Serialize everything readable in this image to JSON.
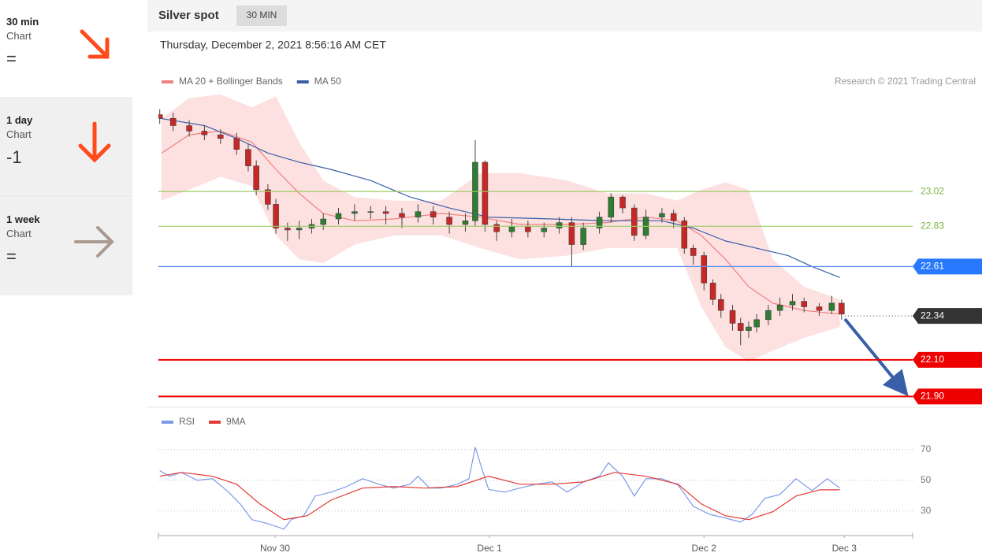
{
  "sidebar": {
    "items": [
      {
        "title": "30 min",
        "subtitle": "Chart",
        "value": "="
      },
      {
        "title": "1 day",
        "subtitle": "Chart",
        "value": "-1"
      },
      {
        "title": "1 week",
        "subtitle": "Chart",
        "value": "="
      }
    ]
  },
  "header": {
    "title": "Silver spot",
    "interval": "30 MIN",
    "timestamp": "Thursday, December 2, 2021 8:56:16 AM CET"
  },
  "chart_data": [
    {
      "type": "candlestick",
      "credit": "Research © 2021 Trading Central",
      "xlim": [
        -13.05,
        71.35
      ],
      "ylim": [
        21.85,
        23.55
      ],
      "candles": {
        "up_color": "#2e7d32",
        "down_color": "#c62828",
        "x": [
          -12.9,
          -11.4,
          -9.6,
          -7.9,
          -6.1,
          -4.3,
          -3.0,
          -2.1,
          -0.8,
          0.1,
          1.4,
          2.7,
          4.1,
          5.4,
          7.1,
          8.9,
          10.7,
          12.4,
          14.2,
          16.0,
          17.7,
          19.5,
          21.3,
          22.4,
          23.5,
          24.8,
          26.5,
          28.3,
          30.1,
          31.8,
          33.2,
          34.5,
          36.3,
          37.6,
          38.9,
          40.2,
          41.5,
          43.3,
          44.6,
          45.8,
          46.8,
          48.0,
          49.0,
          49.9,
          51.2,
          52.1,
          53.0,
          53.9,
          55.2,
          56.5,
          57.9,
          59.2,
          60.9,
          62.3,
          63.4
        ],
        "open": [
          23.44,
          23.42,
          23.38,
          23.35,
          23.33,
          23.31,
          23.25,
          23.16,
          23.03,
          22.95,
          22.82,
          22.81,
          22.82,
          22.84,
          22.87,
          22.9,
          22.91,
          22.91,
          22.9,
          22.88,
          22.91,
          22.88,
          22.84,
          22.86,
          23.18,
          22.84,
          22.8,
          22.83,
          22.8,
          22.82,
          22.85,
          22.73,
          22.82,
          22.88,
          22.99,
          22.93,
          22.78,
          22.88,
          22.9,
          22.86,
          22.71,
          22.67,
          22.52,
          22.43,
          22.37,
          22.3,
          22.26,
          22.28,
          22.32,
          22.37,
          22.4,
          22.42,
          22.39,
          22.37,
          22.41
        ],
        "high": [
          23.47,
          23.45,
          23.41,
          23.38,
          23.36,
          23.34,
          23.28,
          23.19,
          23.06,
          22.98,
          22.85,
          22.86,
          22.87,
          22.9,
          22.93,
          22.95,
          22.94,
          22.94,
          22.93,
          22.95,
          22.94,
          22.91,
          22.9,
          23.3,
          23.19,
          22.86,
          22.87,
          22.86,
          22.85,
          22.88,
          22.88,
          22.85,
          22.91,
          23.01,
          23.0,
          22.95,
          22.92,
          22.93,
          22.92,
          22.88,
          22.73,
          22.69,
          22.54,
          22.46,
          22.4,
          22.33,
          22.31,
          22.35,
          22.4,
          22.44,
          22.46,
          22.44,
          22.41,
          22.45,
          22.43
        ],
        "low": [
          23.39,
          23.35,
          23.32,
          23.3,
          23.28,
          23.22,
          23.13,
          23.0,
          22.92,
          22.79,
          22.75,
          22.76,
          22.79,
          22.81,
          22.84,
          22.86,
          22.87,
          22.84,
          22.82,
          22.85,
          22.84,
          22.79,
          22.8,
          22.83,
          22.8,
          22.75,
          22.77,
          22.77,
          22.77,
          22.79,
          22.61,
          22.7,
          22.79,
          22.85,
          22.9,
          22.75,
          22.76,
          22.85,
          22.82,
          22.68,
          22.62,
          22.48,
          22.4,
          22.33,
          22.26,
          22.18,
          22.22,
          22.25,
          22.29,
          22.34,
          22.37,
          22.36,
          22.34,
          22.35,
          22.32
        ],
        "close": [
          23.42,
          23.38,
          23.35,
          23.33,
          23.31,
          23.25,
          23.16,
          23.03,
          22.95,
          22.82,
          22.81,
          22.82,
          22.84,
          22.87,
          22.9,
          22.91,
          22.91,
          22.9,
          22.88,
          22.91,
          22.88,
          22.84,
          22.86,
          23.18,
          22.84,
          22.8,
          22.83,
          22.8,
          22.82,
          22.85,
          22.73,
          22.82,
          22.88,
          22.99,
          22.93,
          22.78,
          22.88,
          22.9,
          22.86,
          22.71,
          22.67,
          22.52,
          22.43,
          22.37,
          22.3,
          22.26,
          22.28,
          22.32,
          22.37,
          22.4,
          22.42,
          22.39,
          22.37,
          22.41,
          22.35
        ]
      },
      "series": [
        {
          "name": "MA 20 + Bollinger Bands",
          "color": "#f08080",
          "band_color": "#fde0e0",
          "x": [
            -12.7,
            -9.6,
            -6.1,
            -2.6,
            0.1,
            2.7,
            5.4,
            8.9,
            13.3,
            18.6,
            23.0,
            27.4,
            32.7,
            37.1,
            41.5,
            45.0,
            47.7,
            50.4,
            53.0,
            55.7,
            59.2,
            63.2
          ],
          "values": [
            23.23,
            23.33,
            23.35,
            23.29,
            23.14,
            23.01,
            22.9,
            22.86,
            22.87,
            22.9,
            22.88,
            22.84,
            22.84,
            22.85,
            22.88,
            22.86,
            22.78,
            22.65,
            22.5,
            22.41,
            22.37,
            22.35
          ],
          "upper": [
            23.42,
            23.53,
            23.55,
            23.48,
            23.54,
            23.29,
            23.08,
            22.99,
            22.97,
            22.97,
            23.12,
            23.12,
            23.08,
            23.01,
            23.01,
            22.97,
            23.03,
            23.07,
            23.03,
            22.65,
            22.5,
            22.43
          ],
          "lower": [
            22.97,
            23.03,
            23.1,
            23.05,
            22.78,
            22.65,
            22.63,
            22.73,
            22.78,
            22.78,
            22.71,
            22.65,
            22.67,
            22.71,
            22.71,
            22.71,
            22.39,
            22.17,
            22.09,
            22.15,
            22.22,
            22.28
          ]
        },
        {
          "name": "MA 50",
          "color": "#3a5fa8",
          "x": [
            -12.9,
            -7.9,
            -4.3,
            -0.8,
            2.7,
            6.3,
            10.7,
            15.1,
            19.5,
            23.9,
            31.0,
            37.1,
            43.3,
            46.8,
            50.4,
            53.9,
            57.4,
            60.1,
            63.2
          ],
          "values": [
            23.42,
            23.38,
            23.31,
            23.23,
            23.18,
            23.14,
            23.08,
            22.99,
            22.93,
            22.88,
            22.87,
            22.86,
            22.86,
            22.82,
            22.75,
            22.71,
            22.67,
            22.61,
            22.55
          ]
        }
      ],
      "levels": [
        {
          "value": 23.02,
          "color": "#9ccc65",
          "text_color": "#7cb342",
          "style": "text"
        },
        {
          "value": 22.83,
          "color": "#9ccc65",
          "text_color": "#7cb342",
          "style": "text"
        },
        {
          "value": 22.61,
          "color": "#5b8def",
          "text_color": "#2979ff",
          "style": "tag"
        },
        {
          "value": 22.34,
          "color": "#333333",
          "text_color": "#333333",
          "style": "dotted-tag"
        },
        {
          "value": 22.1,
          "label": "22.10",
          "color": "#ee0000",
          "text_color": "#ee0000",
          "style": "tag"
        },
        {
          "value": 21.9,
          "label": "21.90",
          "color": "#ee0000",
          "text_color": "#ee0000",
          "style": "tag"
        }
      ]
    },
    {
      "type": "line",
      "xlim": [
        -13.05,
        71.35
      ],
      "ylim": [
        14,
        96
      ],
      "yticks": [
        70,
        50,
        30
      ],
      "xticks": [
        {
          "value": 0,
          "label": "Nov 30"
        },
        {
          "value": 24,
          "label": "Dec 1"
        },
        {
          "value": 48,
          "label": "Dec 2"
        },
        {
          "value": 63.7,
          "label": "Dec 3"
        }
      ],
      "series": [
        {
          "name": "RSI",
          "color": "#7b9ae8",
          "x": [
            -12.9,
            -11.8,
            -10.5,
            -8.7,
            -7.0,
            -5.2,
            -3.9,
            -2.6,
            -0.8,
            1.0,
            1.8,
            3.2,
            4.5,
            6.3,
            8.0,
            9.8,
            11.6,
            13.3,
            15.1,
            16.0,
            17.3,
            18.6,
            20.4,
            21.7,
            22.4,
            23.0,
            23.9,
            25.7,
            27.4,
            29.2,
            31.0,
            32.7,
            34.5,
            36.3,
            37.3,
            38.9,
            40.2,
            41.5,
            43.3,
            45.1,
            46.8,
            48.6,
            50.4,
            52.1,
            53.4,
            54.8,
            56.5,
            58.3,
            60.1,
            61.8,
            63.2
          ],
          "values": [
            56.2,
            52.6,
            55.1,
            50.0,
            51.0,
            42.3,
            34.6,
            24.4,
            21.8,
            18.2,
            24.4,
            26.9,
            39.7,
            42.3,
            45.9,
            51.0,
            47.4,
            44.9,
            47.4,
            52.6,
            44.9,
            44.9,
            47.4,
            51.0,
            71.5,
            60.3,
            44.0,
            42.3,
            44.9,
            47.4,
            48.9,
            42.3,
            48.9,
            52.6,
            61.3,
            52.6,
            39.7,
            51.0,
            51.0,
            46.9,
            33.1,
            27.9,
            25.4,
            22.8,
            27.9,
            38.2,
            40.8,
            51.0,
            43.3,
            51.0,
            44.9
          ]
        },
        {
          "name": "9MA",
          "color": "#e53935",
          "x": [
            -12.9,
            -10.5,
            -7.0,
            -4.3,
            -1.7,
            1.0,
            3.6,
            6.3,
            9.8,
            13.3,
            16.8,
            20.4,
            23.9,
            27.4,
            31.0,
            34.5,
            38.0,
            41.5,
            45.1,
            47.7,
            50.4,
            53.0,
            55.7,
            58.3,
            61.0,
            63.2
          ],
          "values": [
            52.6,
            55.1,
            52.6,
            47.4,
            34.6,
            24.4,
            26.9,
            37.2,
            44.9,
            45.9,
            44.9,
            45.9,
            52.6,
            47.4,
            47.4,
            48.9,
            55.1,
            52.6,
            47.4,
            34.6,
            26.9,
            24.4,
            29.5,
            39.7,
            43.8,
            43.8
          ]
        }
      ]
    }
  ]
}
